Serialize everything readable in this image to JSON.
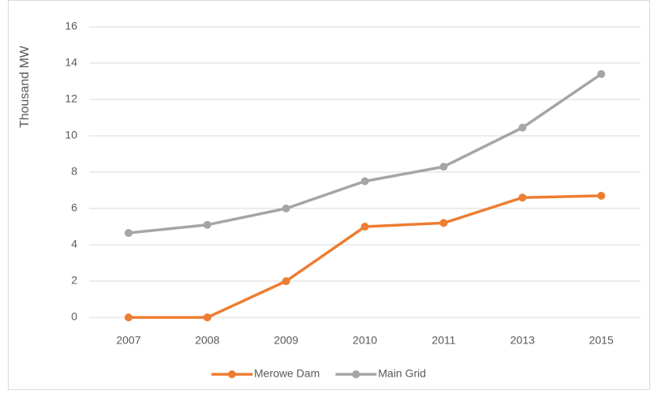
{
  "chart_data": {
    "type": "line",
    "categories": [
      "2007",
      "2008",
      "2009",
      "2010",
      "2011",
      "2013",
      "2015"
    ],
    "series": [
      {
        "name": "Merowe Dam",
        "color": "#ed7d31",
        "values": [
          0,
          0,
          2.0,
          5.0,
          5.2,
          6.6,
          6.7
        ]
      },
      {
        "name": "Main Grid",
        "color": "#a5a5a5",
        "values": [
          4.65,
          5.1,
          6.0,
          7.5,
          8.3,
          10.45,
          13.4
        ]
      }
    ],
    "y_label": "Thousand MW",
    "ylim": [
      0,
      16
    ],
    "yticks": [
      0,
      2,
      4,
      6,
      8,
      10,
      12,
      14,
      16
    ],
    "grid": true,
    "legend": "bottom"
  }
}
